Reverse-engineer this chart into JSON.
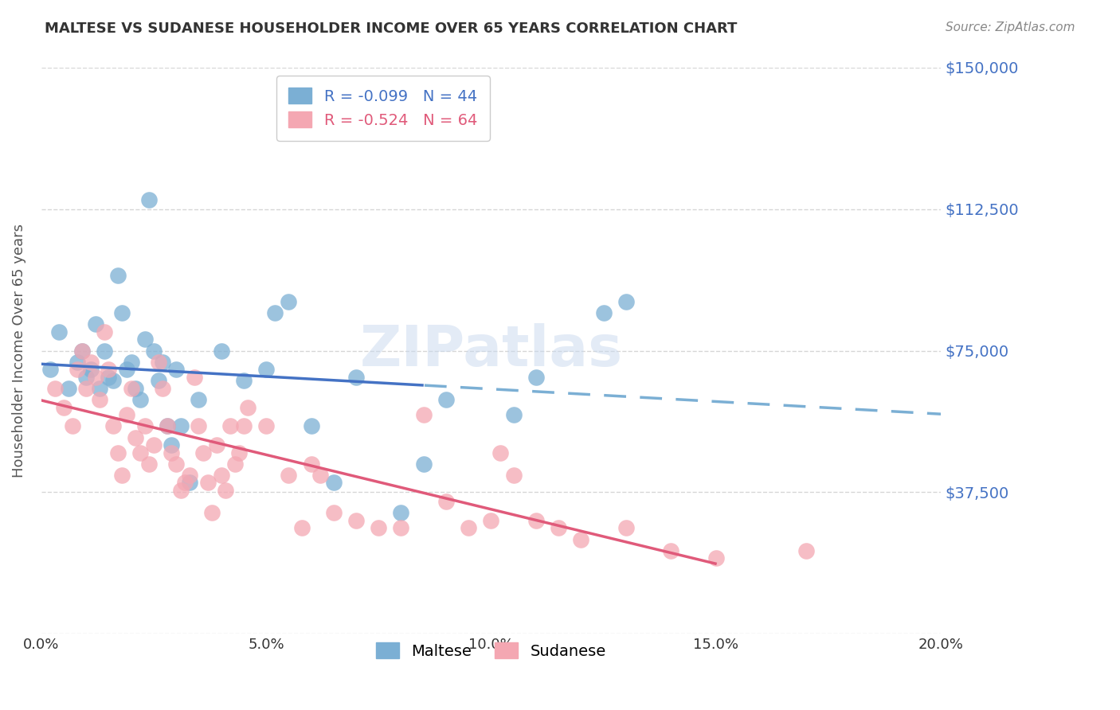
{
  "title": "MALTESE VS SUDANESE HOUSEHOLDER INCOME OVER 65 YEARS CORRELATION CHART",
  "source": "Source: ZipAtlas.com",
  "ylabel": "Householder Income Over 65 years",
  "xlabel_ticks": [
    "0.0%",
    "5.0%",
    "10.0%",
    "15.0%",
    "20.0%"
  ],
  "xlabel_vals": [
    0.0,
    5.0,
    10.0,
    15.0,
    20.0
  ],
  "ylim": [
    0,
    150000
  ],
  "xlim": [
    0.0,
    20.0
  ],
  "ytick_vals": [
    0,
    37500,
    75000,
    112500,
    150000
  ],
  "ytick_labels": [
    "",
    "$37,500",
    "$75,000",
    "$112,500",
    "$150,000"
  ],
  "maltese_color": "#7bafd4",
  "sudanese_color": "#f4a7b2",
  "maltese_line_color": "#4472c4",
  "sudanese_line_color": "#e05a7a",
  "maltese_R": -0.099,
  "maltese_N": 44,
  "sudanese_R": -0.524,
  "sudanese_N": 64,
  "title_color": "#333333",
  "axis_label_color": "#555555",
  "tick_color": "#4472c4",
  "grid_color": "#cccccc",
  "watermark": "ZIPatlas",
  "maltese_scatter_x": [
    0.2,
    0.4,
    0.6,
    0.8,
    0.9,
    1.0,
    1.1,
    1.2,
    1.3,
    1.4,
    1.5,
    1.6,
    1.7,
    1.8,
    1.9,
    2.0,
    2.1,
    2.2,
    2.3,
    2.4,
    2.5,
    2.6,
    2.7,
    2.8,
    2.9,
    3.0,
    3.1,
    3.3,
    3.5,
    4.0,
    4.5,
    5.0,
    5.2,
    5.5,
    6.0,
    6.5,
    7.0,
    8.0,
    8.5,
    9.0,
    10.5,
    11.0,
    12.5,
    13.0
  ],
  "maltese_scatter_y": [
    70000,
    80000,
    65000,
    72000,
    75000,
    68000,
    70000,
    82000,
    65000,
    75000,
    68000,
    67000,
    95000,
    85000,
    70000,
    72000,
    65000,
    62000,
    78000,
    115000,
    75000,
    67000,
    72000,
    55000,
    50000,
    70000,
    55000,
    40000,
    62000,
    75000,
    67000,
    70000,
    85000,
    88000,
    55000,
    40000,
    68000,
    32000,
    45000,
    62000,
    58000,
    68000,
    85000,
    88000
  ],
  "sudanese_scatter_x": [
    0.3,
    0.5,
    0.7,
    0.8,
    0.9,
    1.0,
    1.1,
    1.2,
    1.3,
    1.4,
    1.5,
    1.6,
    1.7,
    1.8,
    1.9,
    2.0,
    2.1,
    2.2,
    2.3,
    2.4,
    2.5,
    2.6,
    2.7,
    2.8,
    2.9,
    3.0,
    3.1,
    3.2,
    3.3,
    3.4,
    3.5,
    3.6,
    3.7,
    3.8,
    3.9,
    4.0,
    4.1,
    4.2,
    4.3,
    4.4,
    4.5,
    4.6,
    5.0,
    5.5,
    5.8,
    6.0,
    6.2,
    6.5,
    7.0,
    7.5,
    8.0,
    8.5,
    9.0,
    9.5,
    10.0,
    10.2,
    10.5,
    11.0,
    11.5,
    12.0,
    13.0,
    14.0,
    15.0,
    17.0
  ],
  "sudanese_scatter_y": [
    65000,
    60000,
    55000,
    70000,
    75000,
    65000,
    72000,
    68000,
    62000,
    80000,
    70000,
    55000,
    48000,
    42000,
    58000,
    65000,
    52000,
    48000,
    55000,
    45000,
    50000,
    72000,
    65000,
    55000,
    48000,
    45000,
    38000,
    40000,
    42000,
    68000,
    55000,
    48000,
    40000,
    32000,
    50000,
    42000,
    38000,
    55000,
    45000,
    48000,
    55000,
    60000,
    55000,
    42000,
    28000,
    45000,
    42000,
    32000,
    30000,
    28000,
    28000,
    58000,
    35000,
    28000,
    30000,
    48000,
    42000,
    30000,
    28000,
    25000,
    28000,
    22000,
    20000,
    22000
  ],
  "m_solid_end": 8.5,
  "s_solid_end": 15.0
}
